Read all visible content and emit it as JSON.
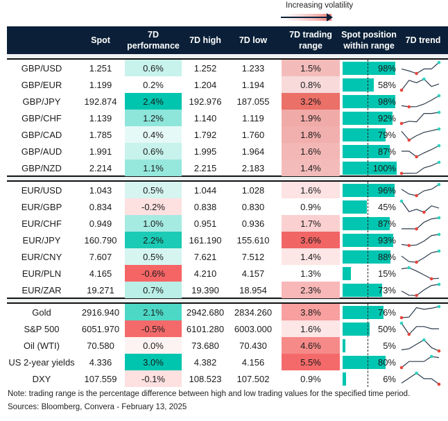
{
  "legend": {
    "label": "Increasing volatility"
  },
  "colors": {
    "header_bg": "#0b2038",
    "bar": "#00c5b0",
    "min_marker": "#e8453c",
    "max_marker": "#2ed3c0",
    "line": "#2b3a4a"
  },
  "headers": [
    "Spot",
    "7D performance",
    "7D high",
    "7D low",
    "7D trading range",
    "Spot position within range",
    "7D trend"
  ],
  "groups": [
    [
      {
        "name": "GBP/USD",
        "spot": "1.251",
        "perf": "0.6%",
        "perf_color": "#c8f2ec",
        "high": "1.252",
        "low": "1.233",
        "range": "1.5%",
        "range_color": "#f3bcbb",
        "position": "98%",
        "position_value": 98,
        "trend": [
          0.5,
          0.35,
          0.15,
          0.5,
          0.5,
          1
        ]
      },
      {
        "name": "GBP/EUR",
        "spot": "1.199",
        "perf": "0.2%",
        "perf_color": "#ffffff",
        "high": "1.204",
        "low": "1.194",
        "range": "0.8%",
        "range_color": "#f8dada",
        "position": "58%",
        "position_value": 58,
        "trend": [
          0,
          0.8,
          0.6,
          0.9,
          0.3,
          0.5
        ]
      },
      {
        "name": "GBP/JPY",
        "spot": "192.874",
        "perf": "2.4%",
        "perf_color": "#00c5ae",
        "high": "192.976",
        "low": "187.055",
        "range": "3.2%",
        "range_color": "#ea7068",
        "position": "98%",
        "position_value": 98,
        "trend": [
          0.1,
          0,
          0.02,
          0.25,
          0.6,
          1
        ]
      },
      {
        "name": "GBP/CHF",
        "spot": "1.139",
        "perf": "1.2%",
        "perf_color": "#8ee6db",
        "high": "1.140",
        "low": "1.119",
        "range": "1.9%",
        "range_color": "#f0aaa8",
        "position": "92%",
        "position_value": 92,
        "trend": [
          0,
          0.2,
          0.15,
          0.9,
          0.9,
          1
        ]
      },
      {
        "name": "GBP/CAD",
        "spot": "1.785",
        "perf": "0.4%",
        "perf_color": "#e5f9f6",
        "high": "1.792",
        "low": "1.760",
        "range": "1.8%",
        "range_color": "#f1afad",
        "position": "79%",
        "position_value": 79,
        "trend": [
          0.8,
          0,
          0.4,
          0.7,
          0.85,
          1
        ]
      },
      {
        "name": "GBP/AUD",
        "spot": "1.991",
        "perf": "0.6%",
        "perf_color": "#c8f2ec",
        "high": "1.995",
        "low": "1.964",
        "range": "1.6%",
        "range_color": "#f3b8b6",
        "position": "87%",
        "position_value": 87,
        "trend": [
          0.5,
          0.5,
          0,
          0.35,
          0.65,
          1
        ]
      },
      {
        "name": "GBP/NZD",
        "spot": "2.214",
        "perf": "1.1%",
        "perf_color": "#96e8dd",
        "high": "2.215",
        "low": "2.183",
        "range": "1.4%",
        "range_color": "#f3bcbb",
        "position": "100%",
        "position_value": 100,
        "trend": [
          0,
          0.01,
          0.02,
          0.5,
          0.7,
          1
        ]
      }
    ],
    [
      {
        "name": "EUR/USD",
        "spot": "1.043",
        "perf": "0.5%",
        "perf_color": "#d6f5f0",
        "high": "1.044",
        "low": "1.028",
        "range": "1.6%",
        "range_color": "#fde3e3",
        "position": "96%",
        "position_value": 96,
        "trend": [
          0.7,
          0.4,
          0.3,
          0.6,
          0.7,
          1
        ]
      },
      {
        "name": "EUR/GBP",
        "spot": "0.834",
        "perf": "-0.2%",
        "perf_color": "#fde0e0",
        "high": "0.838",
        "low": "0.830",
        "range": "0.9%",
        "range_color": "#ffffff",
        "position": "45%",
        "position_value": 45,
        "trend": [
          1,
          0.1,
          0.3,
          0.05,
          0.6,
          0.4
        ]
      },
      {
        "name": "EUR/CHF",
        "spot": "0.949",
        "perf": "1.0%",
        "perf_color": "#a6ebe2",
        "high": "0.951",
        "low": "0.936",
        "range": "1.7%",
        "range_color": "#fbd0d0",
        "position": "87%",
        "position_value": 87,
        "trend": [
          0.01,
          0.01,
          0,
          0.6,
          0.9,
          1
        ]
      },
      {
        "name": "EUR/JPY",
        "spot": "160.790",
        "perf": "2.2%",
        "perf_color": "#1ccbb5",
        "high": "161.190",
        "low": "155.610",
        "range": "3.6%",
        "range_color": "#f16565",
        "position": "93%",
        "position_value": 93,
        "trend": [
          0.1,
          0,
          0.05,
          0.4,
          0.9,
          1
        ]
      },
      {
        "name": "EUR/CNY",
        "spot": "7.607",
        "perf": "0.5%",
        "perf_color": "#d6f5f0",
        "high": "7.621",
        "low": "7.512",
        "range": "1.4%",
        "range_color": "#fde6e6",
        "position": "88%",
        "position_value": 88,
        "trend": [
          0.55,
          0.05,
          0,
          0.4,
          0.85,
          1
        ]
      },
      {
        "name": "EUR/PLN",
        "spot": "4.165",
        "perf": "-0.6%",
        "perf_color": "#f56565",
        "high": "4.210",
        "low": "4.157",
        "range": "1.3%",
        "range_color": "#ffffff",
        "position": "15%",
        "position_value": 15,
        "trend": [
          0.9,
          1,
          0.7,
          0.35,
          0,
          0.05
        ]
      },
      {
        "name": "EUR/ZAR",
        "spot": "19.271",
        "perf": "0.7%",
        "perf_color": "#b9efe7",
        "high": "19.390",
        "low": "18.954",
        "range": "2.3%",
        "range_color": "#f8b8b8",
        "position": "73%",
        "position_value": 73,
        "trend": [
          0.4,
          0.02,
          0,
          0.5,
          0.9,
          1
        ]
      }
    ],
    [
      {
        "name": "Gold",
        "spot": "2916.940",
        "perf": "2.1%",
        "perf_color": "#4dd8c6",
        "high": "2942.680",
        "low": "2834.260",
        "range": "3.8%",
        "range_color": "#f8a09f",
        "position": "76%",
        "position_value": 76,
        "trend": [
          0,
          0.05,
          0.9,
          0.75,
          0.85,
          1
        ]
      },
      {
        "name": "S&P 500",
        "spot": "6051.970",
        "perf": "-0.5%",
        "perf_color": "#f46a6a",
        "high": "6101.280",
        "low": "6003.000",
        "range": "1.6%",
        "range_color": "#fde6e6",
        "position": "50%",
        "position_value": 50,
        "trend": [
          1,
          0,
          0.7,
          0.7,
          0.5,
          0.5
        ]
      },
      {
        "name": "Oil (WTI)",
        "spot": "70.580",
        "perf": "0.0%",
        "perf_color": "#fef3f3",
        "high": "73.680",
        "low": "70.430",
        "range": "4.6%",
        "range_color": "#f68a89",
        "position": "5%",
        "position_value": 5,
        "trend": [
          0.1,
          0.2,
          0.6,
          1,
          0.3,
          0
        ]
      },
      {
        "name": "US 2-year yields",
        "spot": "4.336",
        "perf": "3.0%",
        "perf_color": "#00c5ae",
        "high": "4.382",
        "low": "4.156",
        "range": "5.5%",
        "range_color": "#f46a6a",
        "position": "80%",
        "position_value": 80,
        "trend": [
          0,
          0.55,
          0.55,
          0.55,
          1,
          0.9
        ]
      },
      {
        "name": "DXY",
        "spot": "107.559",
        "perf": "-0.1%",
        "perf_color": "#fde0e0",
        "high": "108.523",
        "low": "107.502",
        "range": "0.9%",
        "range_color": "#ffffff",
        "position": "6%",
        "position_value": 6,
        "trend": [
          0.1,
          0.55,
          1,
          0.5,
          0.5,
          0
        ]
      }
    ]
  ],
  "footer": {
    "note": "Note: trading range is the percentage difference between high and low trading values for the specified time period.",
    "sources": "Sources: Bloomberg, Convera - February 13, 2025"
  }
}
